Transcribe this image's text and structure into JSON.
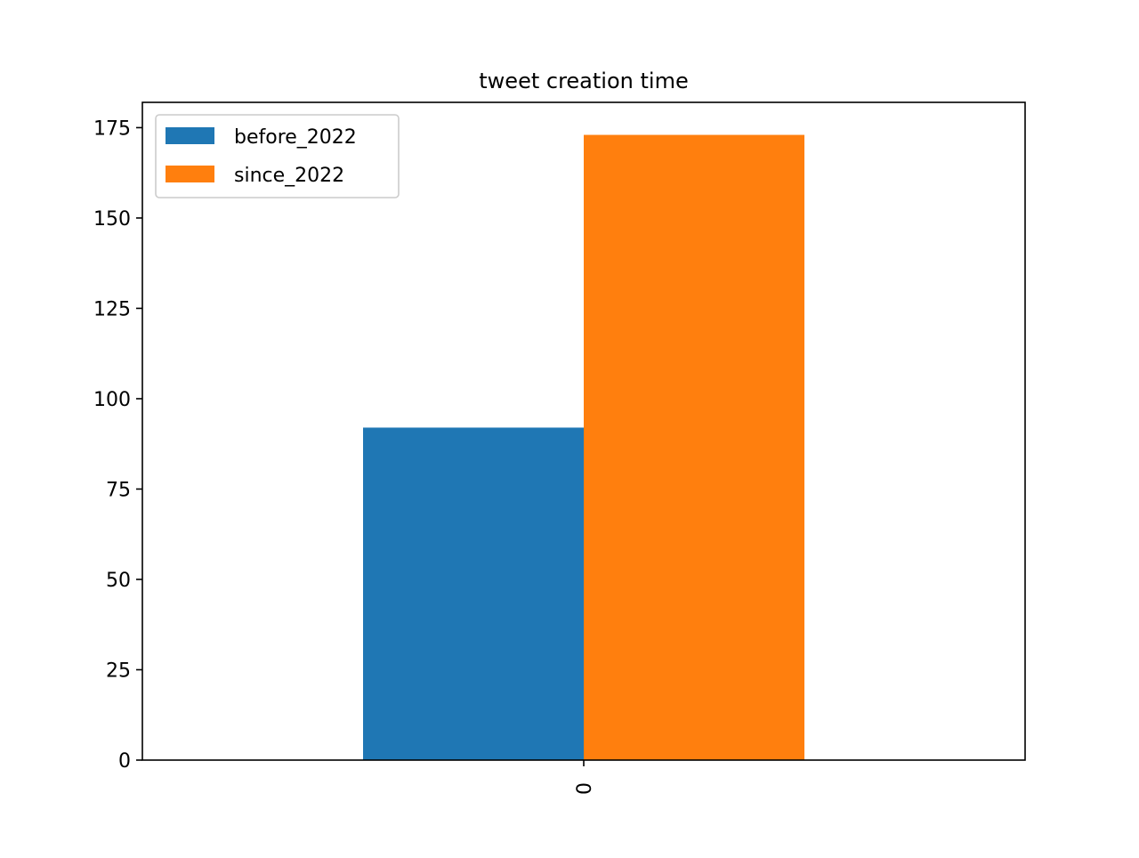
{
  "chart_data": {
    "type": "bar",
    "title": "tweet creation time",
    "xlabel": "",
    "ylabel": "",
    "categories": [
      "0"
    ],
    "series": [
      {
        "name": "before_2022",
        "values": [
          92
        ],
        "color": "#1f77b4"
      },
      {
        "name": "since_2022",
        "values": [
          173
        ],
        "color": "#ff7f0e"
      }
    ],
    "ylim": [
      0,
      182
    ],
    "yticks": [
      0,
      25,
      50,
      75,
      100,
      125,
      150,
      175
    ],
    "grid": false,
    "legend_position": "top-left",
    "xtick_rotation": "vertical"
  }
}
